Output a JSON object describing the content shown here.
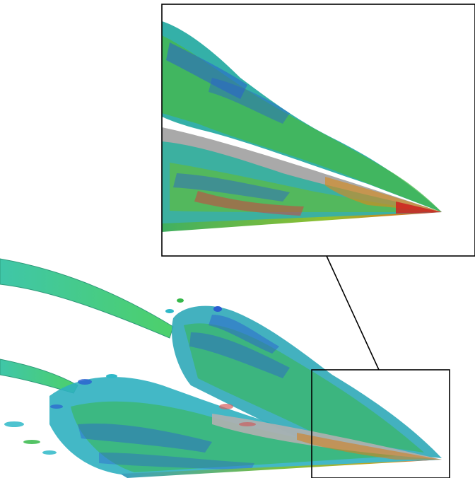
{
  "figure": {
    "description_colors": {
      "vortex_tube": "#3fc49a",
      "turbulence_green": "#36b84a",
      "turbulence_cyan": "#2fb8c8",
      "turbulence_blue": "#2a5fd0",
      "edge_red": "#d42020",
      "surface_gray": "#a8a8a8",
      "frame": "#000000",
      "background": "#ffffff"
    }
  }
}
